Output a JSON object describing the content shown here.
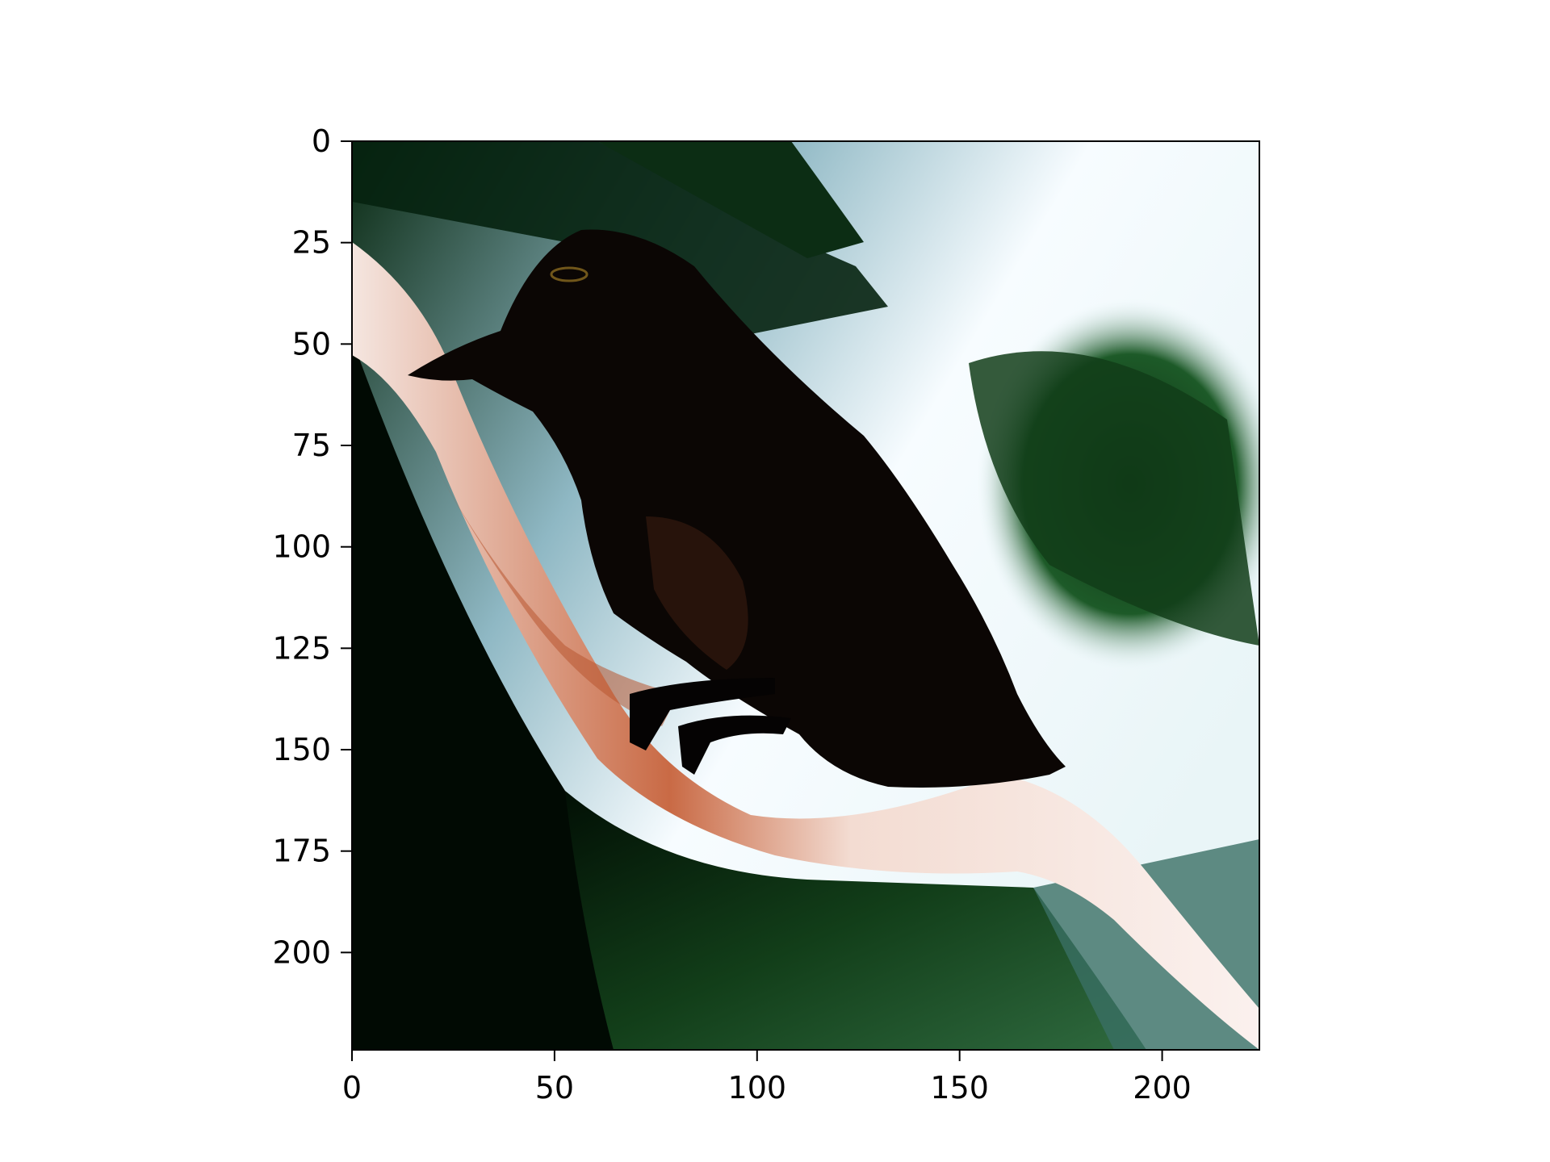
{
  "figure": {
    "image_description_icon": "bird-on-branch-image",
    "colors": {
      "frame": "#000000",
      "background": "#ffffff",
      "sky_white": "#f4fbff",
      "foliage_dark": "#021a06",
      "foliage_green": "#1f6b2e",
      "branch": "#f2d9cc",
      "branch_rust": "#b04a2a",
      "bird": "#0b0604"
    }
  },
  "axes": {
    "x_ticks": [
      {
        "value": 0,
        "label": "0"
      },
      {
        "value": 50,
        "label": "50"
      },
      {
        "value": 100,
        "label": "100"
      },
      {
        "value": 150,
        "label": "150"
      },
      {
        "value": 200,
        "label": "200"
      }
    ],
    "y_ticks": [
      {
        "value": 0,
        "label": "0"
      },
      {
        "value": 25,
        "label": "25"
      },
      {
        "value": 50,
        "label": "50"
      },
      {
        "value": 75,
        "label": "75"
      },
      {
        "value": 100,
        "label": "100"
      },
      {
        "value": 125,
        "label": "125"
      },
      {
        "value": 150,
        "label": "150"
      },
      {
        "value": 175,
        "label": "175"
      },
      {
        "value": 200,
        "label": "200"
      }
    ],
    "x_range": [
      0,
      224
    ],
    "y_range": [
      0,
      224
    ]
  }
}
